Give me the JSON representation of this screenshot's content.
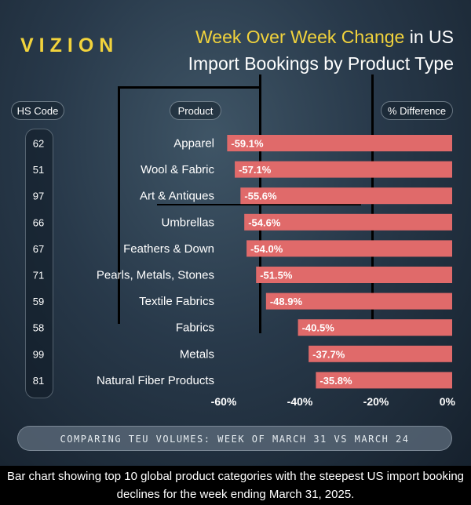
{
  "brand": {
    "logo": "VIZION"
  },
  "header": {
    "title_highlight": "Week Over Week Change",
    "title_rest": " in US",
    "title_line2": "Import Bookings by Product Type"
  },
  "columns": {
    "hs_code": "HS Code",
    "product": "Product",
    "difference": "% Difference"
  },
  "footer": "COMPARING TEU VOLUMES: WEEK OF MARCH 31 VS MARCH 24",
  "caption": "Bar chart showing top 10 global product categories with the steepest US import booking declines for the week ending March 31, 2025.",
  "colors": {
    "bar": "#e06a6a",
    "accent": "#f2d33c",
    "text": "#ffffff"
  },
  "chart_data": {
    "type": "bar",
    "orientation": "horizontal",
    "categories": [
      "Apparel",
      "Wool & Fabric",
      "Art & Antiques",
      "Umbrellas",
      "Feathers & Down",
      "Pearls, Metals, Stones",
      "Textile Fabrics",
      "Fabrics",
      "Metals",
      "Natural Fiber Products"
    ],
    "hs_codes": [
      "62",
      "51",
      "97",
      "66",
      "67",
      "71",
      "59",
      "58",
      "99",
      "81"
    ],
    "values": [
      -59.1,
      -57.1,
      -55.6,
      -54.6,
      -54.0,
      -51.5,
      -48.9,
      -40.5,
      -37.7,
      -35.8
    ],
    "value_labels": [
      "-59.1%",
      "-57.1%",
      "-55.6%",
      "-54.6%",
      "-54.0%",
      "-51.5%",
      "-48.9%",
      "-40.5%",
      "-37.7%",
      "-35.8%"
    ],
    "xlim": [
      -60,
      0
    ],
    "xticks": [
      -60,
      -40,
      -20,
      0
    ],
    "xtick_labels": [
      "-60%",
      "-40%",
      "-20%",
      "0%"
    ],
    "grid": false
  }
}
